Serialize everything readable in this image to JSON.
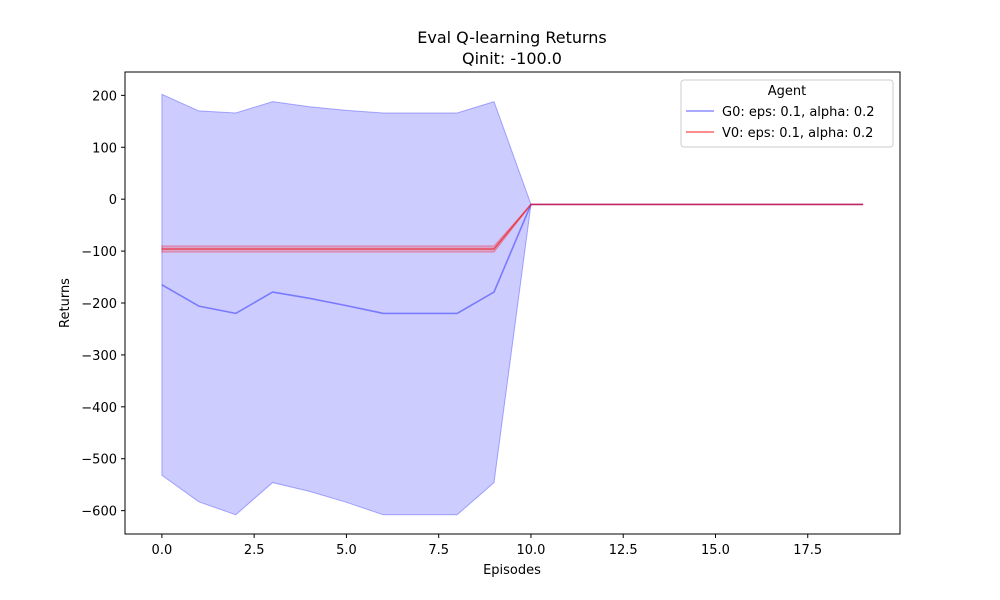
{
  "chart_data": {
    "type": "line",
    "title": "Eval Q-learning Returns",
    "subtitle": "Qinit: -100.0",
    "xlabel": "Episodes",
    "ylabel": "Returns",
    "xlim": [
      -1,
      20
    ],
    "ylim": [
      -645,
      245
    ],
    "xticks": [
      0,
      2.5,
      5,
      7.5,
      10,
      12.5,
      15,
      17.5
    ],
    "xtick_labels": [
      "0.0",
      "2.5",
      "5.0",
      "7.5",
      "10.0",
      "12.5",
      "15.0",
      "17.5"
    ],
    "yticks": [
      200,
      100,
      0,
      -100,
      -200,
      -300,
      -400,
      -500,
      -600
    ],
    "ytick_labels": [
      "200",
      "100",
      "0",
      "−100",
      "−200",
      "−300",
      "−400",
      "−500",
      "−600"
    ],
    "grid": false,
    "legend": {
      "title": "Agent",
      "placement": "top-right"
    },
    "x": [
      0,
      1,
      2,
      3,
      4,
      5,
      6,
      7,
      8,
      9,
      10,
      11,
      12,
      13,
      14,
      15,
      16,
      17,
      18,
      19
    ],
    "series": [
      {
        "name": "G0: eps: 0.1, alpha: 0.2",
        "color": "#0000ff",
        "line_opacity": 0.4,
        "fill_opacity": 0.2,
        "values": [
          -165,
          -206,
          -220,
          -179,
          -191,
          -205,
          -220,
          -220,
          -220,
          -179,
          -10,
          -10,
          -10,
          -10,
          -10,
          -10,
          -10,
          -10,
          -10,
          -10
        ],
        "upper": [
          202,
          170,
          166,
          188,
          178,
          171,
          166,
          166,
          166,
          188,
          -10,
          -10,
          -10,
          -10,
          -10,
          -10,
          -10,
          -10,
          -10,
          -10
        ],
        "lower": [
          -532,
          -583,
          -608,
          -546,
          -563,
          -584,
          -608,
          -608,
          -608,
          -546,
          -10,
          -10,
          -10,
          -10,
          -10,
          -10,
          -10,
          -10,
          -10,
          -10
        ]
      },
      {
        "name": "V0: eps: 0.1, alpha: 0.2",
        "color": "#ff0000",
        "line_opacity": 0.55,
        "fill_opacity": 0.2,
        "values": [
          -96,
          -96,
          -96,
          -96,
          -96,
          -96,
          -96,
          -96,
          -96,
          -96,
          -10,
          -10,
          -10,
          -10,
          -10,
          -10,
          -10,
          -10,
          -10,
          -10
        ],
        "upper": [
          -90,
          -90,
          -90,
          -90,
          -90,
          -90,
          -90,
          -90,
          -90,
          -90,
          -10,
          -10,
          -10,
          -10,
          -10,
          -10,
          -10,
          -10,
          -10,
          -10
        ],
        "lower": [
          -102,
          -102,
          -102,
          -102,
          -102,
          -102,
          -102,
          -102,
          -102,
          -102,
          -10,
          -10,
          -10,
          -10,
          -10,
          -10,
          -10,
          -10,
          -10,
          -10
        ]
      }
    ]
  }
}
